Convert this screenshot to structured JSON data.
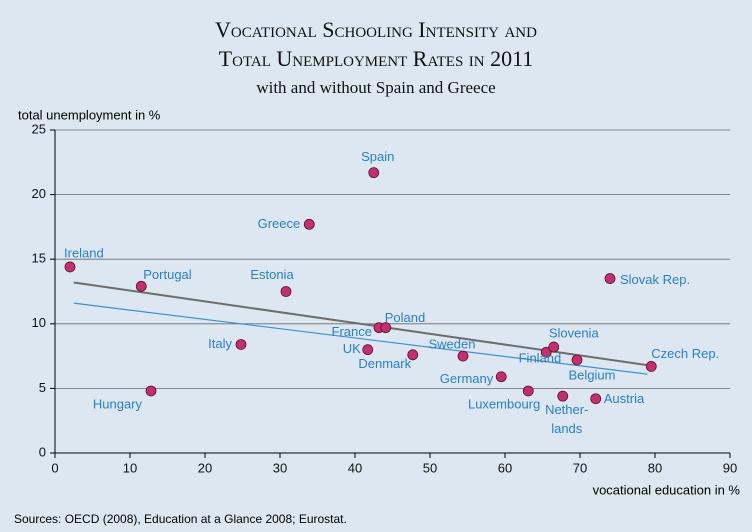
{
  "chart_data": {
    "type": "scatter",
    "title": [
      "Vocational Schooling Intensity and",
      "Total Unemployment Rates in 2011"
    ],
    "subtitle": "with and without Spain and Greece",
    "ylabel": "total unemployment  in %",
    "xlabel": "vocational education in %",
    "source": "Sources: OECD (2008), Education at a Glance 2008; Eurostat.",
    "xlim": [
      0,
      90
    ],
    "xticks": [
      0,
      10,
      20,
      30,
      40,
      50,
      60,
      70,
      80,
      90
    ],
    "ylim": [
      0,
      25
    ],
    "yticks": [
      0,
      5,
      10,
      15,
      20,
      25
    ],
    "grid": true,
    "color": "#c2306e",
    "label_color": "#2a7fc1",
    "points": [
      {
        "label": "Ireland",
        "x": 2.0,
        "y": 14.4
      },
      {
        "label": "Portugal",
        "x": 11.5,
        "y": 12.9
      },
      {
        "label": "Hungary",
        "x": 12.8,
        "y": 4.8
      },
      {
        "label": "Italy",
        "x": 24.8,
        "y": 8.4
      },
      {
        "label": "Estonia",
        "x": 30.8,
        "y": 12.5
      },
      {
        "label": "Greece",
        "x": 33.9,
        "y": 17.7
      },
      {
        "label": "Spain",
        "x": 42.5,
        "y": 21.7
      },
      {
        "label": "UK",
        "x": 41.7,
        "y": 8.0
      },
      {
        "label": "France",
        "x": 43.2,
        "y": 9.7
      },
      {
        "label": "Poland",
        "x": 44.1,
        "y": 9.7
      },
      {
        "label": "Denmark",
        "x": 47.7,
        "y": 7.6
      },
      {
        "label": "Sweden",
        "x": 54.4,
        "y": 7.5
      },
      {
        "label": "Germany",
        "x": 59.5,
        "y": 5.9
      },
      {
        "label": "Luxembourg",
        "x": 63.1,
        "y": 4.8
      },
      {
        "label": "Finland",
        "x": 65.5,
        "y": 7.8
      },
      {
        "label": "Slovenia",
        "x": 66.5,
        "y": 8.2
      },
      {
        "label": [
          "Nether-",
          "lands"
        ],
        "x": 67.7,
        "y": 4.4
      },
      {
        "label": "Belgium",
        "x": 69.6,
        "y": 7.2
      },
      {
        "label": "Austria",
        "x": 72.1,
        "y": 4.2
      },
      {
        "label": "Slovak Rep.",
        "x": 74.0,
        "y": 13.5
      },
      {
        "label": "Czech Rep.",
        "x": 79.5,
        "y": 6.7
      }
    ],
    "trend_lines": [
      {
        "color": "#6d6d6d",
        "x": [
          2.5,
          79
        ],
        "values": [
          13.2,
          6.8
        ]
      },
      {
        "color": "#3d8fd0",
        "x": [
          2.5,
          79
        ],
        "values": [
          11.6,
          6.1
        ]
      }
    ]
  }
}
